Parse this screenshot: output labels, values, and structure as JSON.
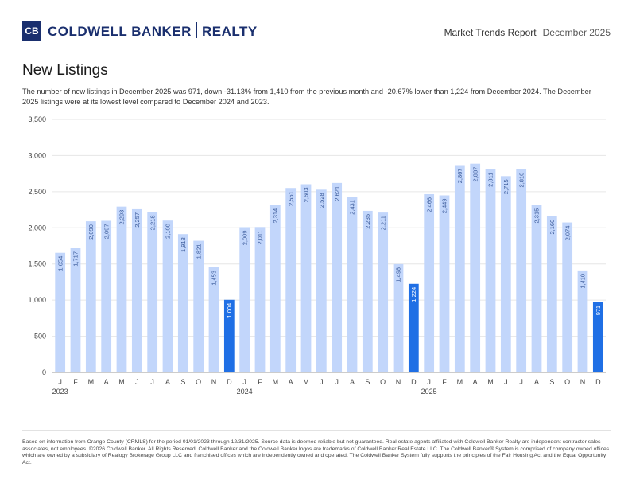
{
  "header": {
    "logo_mark": "CB",
    "brand_left": "COLDWELL BANKER",
    "brand_right": "REALTY",
    "report_title": "Market Trends Report",
    "report_date": "December 2025"
  },
  "title": "New Listings",
  "description": "The number of new listings in December 2025 was 971, down -31.13% from 1,410 from the previous month and -20.67% lower than 1,224 from December 2024. The December 2025 listings were at its lowest level compared to December 2024 and 2023.",
  "footer": "Based on information from Orange County (CRMLS) for the period 01/01/2023 through 12/31/2025. Source data is deemed reliable but not guaranteed. Real estate agents affiliated with Coldwell Banker Realty are independent contractor sales associates, not employees. ©2026 Coldwell Banker. All Rights Reserved. Coldwell Banker and the Coldwell Banker logos are trademarks of Coldwell Banker Real Estate LLC. The Coldwell Banker® System is comprised of company owned offices which are owned by a subsidiary of Realogy Brokerage Group LLC and franchised offices which are independently owned and operated. The Coldwell Banker System fully supports the principles of the Fair Housing Act and the Equal Opportunity Act.",
  "colors": {
    "bar": "#c2d6fb",
    "highlight": "#1f6fe5",
    "grid": "#e6e6e6",
    "brand": "#1a2f6e"
  },
  "chart_data": {
    "type": "bar",
    "title": "New Listings",
    "ylim": [
      0,
      3500
    ],
    "yticks": [
      0,
      500,
      1000,
      1500,
      2000,
      2500,
      3000,
      3500
    ],
    "ytick_labels": [
      "0",
      "500",
      "1,000",
      "1,500",
      "2,000",
      "2,500",
      "3,000",
      "3,500"
    ],
    "categories": [
      "J",
      "F",
      "M",
      "A",
      "M",
      "J",
      "J",
      "A",
      "S",
      "O",
      "N",
      "D",
      "J",
      "F",
      "M",
      "A",
      "M",
      "J",
      "J",
      "A",
      "S",
      "O",
      "N",
      "D",
      "J",
      "F",
      "M",
      "A",
      "M",
      "J",
      "J",
      "A",
      "S",
      "O",
      "N",
      "D"
    ],
    "year_labels": [
      {
        "index": 0,
        "label": "2023"
      },
      {
        "index": 12,
        "label": "2024"
      },
      {
        "index": 24,
        "label": "2025"
      }
    ],
    "values": [
      1654,
      1717,
      2090,
      2097,
      2293,
      2257,
      2218,
      2100,
      1913,
      1821,
      1453,
      1004,
      2009,
      2011,
      2314,
      2551,
      2603,
      2528,
      2621,
      2431,
      2235,
      2211,
      1498,
      1224,
      2466,
      2449,
      2867,
      2887,
      2811,
      2715,
      2810,
      2315,
      2160,
      2074,
      1410,
      971
    ],
    "value_labels": [
      "1,654",
      "1,717",
      "2,090",
      "2,097",
      "2,293",
      "2,257",
      "2,218",
      "2,100",
      "1,913",
      "1,821",
      "1,453",
      "1,004",
      "2,009",
      "2,011",
      "2,314",
      "2,551",
      "2,603",
      "2,528",
      "2,621",
      "2,431",
      "2,235",
      "2,211",
      "1,498",
      "1,224",
      "2,466",
      "2,449",
      "2,867",
      "2,887",
      "2,811",
      "2,715",
      "2,810",
      "2,315",
      "2,160",
      "2,074",
      "1,410",
      "971"
    ],
    "highlighted": [
      11,
      23,
      35
    ],
    "xlabel": "",
    "ylabel": "",
    "grid": true
  }
}
